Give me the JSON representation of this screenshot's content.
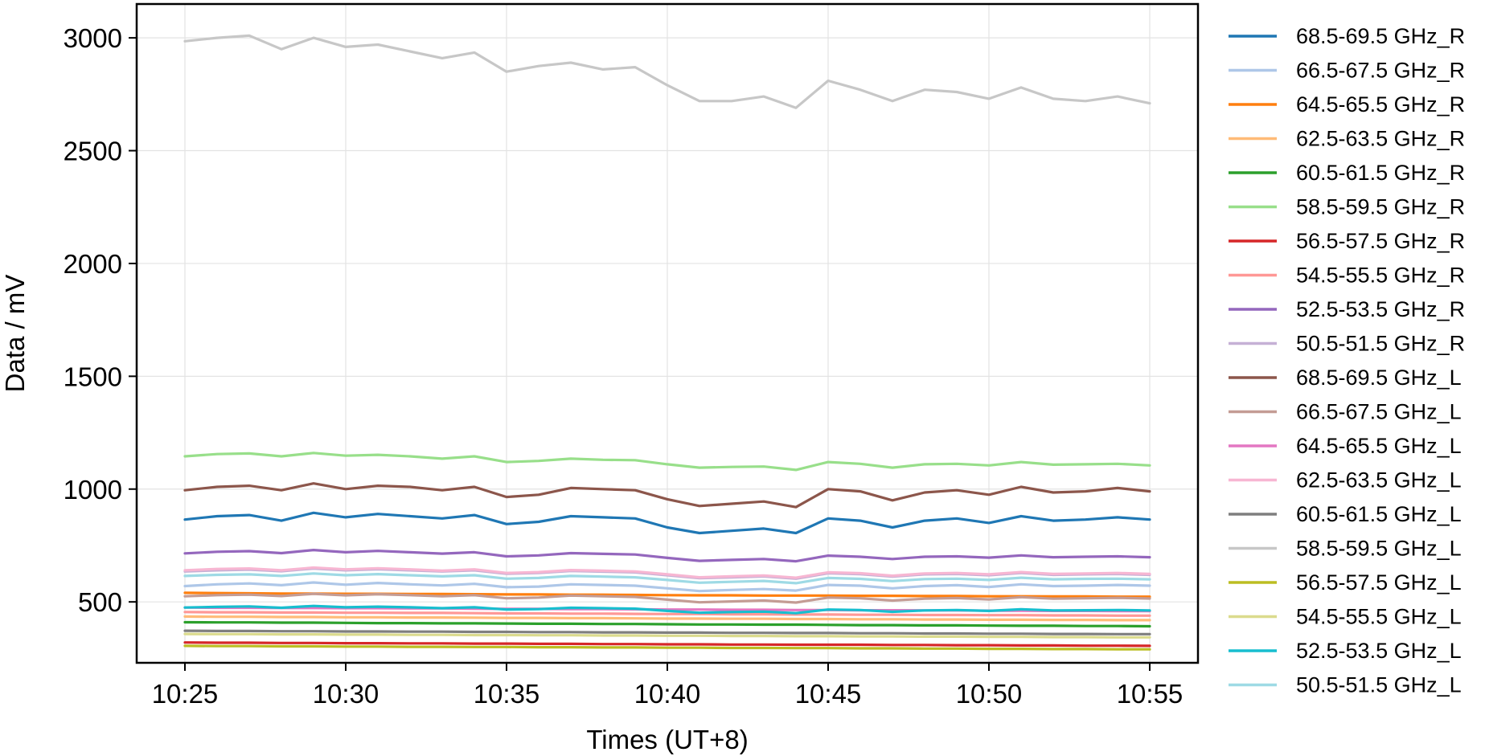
{
  "chart_data": {
    "type": "line",
    "title": "",
    "xlabel": "Times (UT+8)",
    "ylabel": "Data / mV",
    "x_ticks": [
      "10:25",
      "10:30",
      "10:35",
      "10:40",
      "10:45",
      "10:50",
      "10:55"
    ],
    "y_ticks": [
      500,
      1000,
      1500,
      2000,
      2500,
      3000
    ],
    "xlim": [
      "10:23:30",
      "10:56:30"
    ],
    "ylim": [
      230,
      3150
    ],
    "grid": true,
    "legend_position": "outside-right",
    "x": [
      "10:25",
      "10:26",
      "10:27",
      "10:28",
      "10:29",
      "10:30",
      "10:31",
      "10:32",
      "10:33",
      "10:34",
      "10:35",
      "10:36",
      "10:37",
      "10:38",
      "10:39",
      "10:40",
      "10:41",
      "10:42",
      "10:43",
      "10:44",
      "10:45",
      "10:46",
      "10:47",
      "10:48",
      "10:49",
      "10:50",
      "10:51",
      "10:52",
      "10:53",
      "10:54",
      "10:55"
    ],
    "series": [
      {
        "name": "68.5-69.5 GHz_R",
        "color": "#1f77b4",
        "values": [
          865,
          880,
          885,
          860,
          895,
          875,
          890,
          880,
          870,
          885,
          845,
          855,
          880,
          875,
          870,
          830,
          805,
          815,
          825,
          805,
          870,
          860,
          830,
          860,
          870,
          850,
          880,
          860,
          865,
          875,
          865
        ]
      },
      {
        "name": "66.5-67.5 GHz_R",
        "color": "#aec7e8",
        "values": [
          570,
          578,
          582,
          574,
          586,
          576,
          584,
          578,
          573,
          580,
          565,
          568,
          578,
          575,
          572,
          560,
          548,
          553,
          557,
          550,
          575,
          572,
          560,
          570,
          574,
          566,
          578,
          570,
          572,
          575,
          572
        ]
      },
      {
        "name": "64.5-65.5 GHz_R",
        "color": "#ff7f0e",
        "values": [
          540,
          539,
          538,
          537,
          537,
          536,
          536,
          535,
          535,
          534,
          533,
          533,
          532,
          532,
          531,
          530,
          529,
          529,
          528,
          528,
          528,
          527,
          527,
          526,
          526,
          525,
          525,
          524,
          524,
          523,
          523
        ]
      },
      {
        "name": "62.5-63.5 GHz_R",
        "color": "#ffbb78",
        "values": [
          435,
          434,
          434,
          433,
          433,
          432,
          432,
          431,
          431,
          430,
          429,
          429,
          428,
          428,
          427,
          426,
          426,
          425,
          425,
          424,
          424,
          423,
          423,
          422,
          422,
          421,
          421,
          420,
          420,
          419,
          419
        ]
      },
      {
        "name": "60.5-61.5 GHz_R",
        "color": "#2ca02c",
        "values": [
          410,
          409,
          409,
          408,
          408,
          407,
          406,
          406,
          405,
          405,
          404,
          403,
          403,
          402,
          402,
          401,
          400,
          400,
          399,
          399,
          398,
          397,
          397,
          396,
          396,
          395,
          394,
          394,
          393,
          393,
          392
        ]
      },
      {
        "name": "58.5-59.5 GHz_R",
        "color": "#98df8a",
        "values": [
          1145,
          1155,
          1158,
          1145,
          1160,
          1148,
          1152,
          1145,
          1135,
          1145,
          1120,
          1125,
          1135,
          1130,
          1128,
          1110,
          1095,
          1098,
          1100,
          1085,
          1120,
          1112,
          1095,
          1110,
          1112,
          1105,
          1120,
          1108,
          1110,
          1112,
          1105
        ]
      },
      {
        "name": "56.5-57.5 GHz_R",
        "color": "#d62728",
        "values": [
          320,
          319,
          319,
          318,
          318,
          317,
          317,
          316,
          316,
          315,
          315,
          314,
          314,
          313,
          313,
          312,
          312,
          311,
          311,
          310,
          310,
          310,
          309,
          309,
          308,
          308,
          307,
          307,
          306,
          306,
          305
        ]
      },
      {
        "name": "54.5-55.5 GHz_R",
        "color": "#ff9896",
        "values": [
          455,
          454,
          454,
          453,
          453,
          452,
          452,
          451,
          451,
          450,
          449,
          449,
          448,
          448,
          447,
          446,
          446,
          445,
          445,
          444,
          444,
          443,
          443,
          442,
          442,
          441,
          441,
          440,
          440,
          439,
          439
        ]
      },
      {
        "name": "52.5-53.5 GHz_R",
        "color": "#9467bd",
        "values": [
          715,
          722,
          725,
          716,
          730,
          720,
          726,
          720,
          714,
          720,
          702,
          706,
          716,
          713,
          710,
          695,
          682,
          686,
          690,
          680,
          705,
          700,
          690,
          700,
          702,
          696,
          706,
          698,
          700,
          702,
          698
        ]
      },
      {
        "name": "50.5-51.5 GHz_R",
        "color": "#c5b0d5",
        "values": [
          635,
          640,
          643,
          636,
          648,
          640,
          645,
          640,
          635,
          640,
          625,
          628,
          637,
          634,
          631,
          618,
          605,
          609,
          613,
          603,
          627,
          623,
          612,
          622,
          624,
          618,
          628,
          620,
          622,
          624,
          620
        ]
      },
      {
        "name": "68.5-69.5 GHz_L",
        "color": "#8c564b",
        "values": [
          995,
          1010,
          1015,
          995,
          1025,
          1000,
          1015,
          1010,
          995,
          1010,
          965,
          975,
          1005,
          1000,
          995,
          955,
          925,
          935,
          945,
          920,
          1000,
          990,
          950,
          985,
          995,
          975,
          1010,
          985,
          990,
          1005,
          990
        ]
      },
      {
        "name": "66.5-67.5 GHz_L",
        "color": "#c49c94",
        "values": [
          525,
          530,
          532,
          526,
          536,
          529,
          534,
          530,
          525,
          530,
          516,
          519,
          528,
          525,
          522,
          510,
          498,
          502,
          506,
          497,
          519,
          516,
          506,
          514,
          517,
          511,
          521,
          514,
          516,
          518,
          515
        ]
      },
      {
        "name": "64.5-65.5 GHz_L",
        "color": "#e377c2",
        "values": [
          475,
          474,
          474,
          473,
          473,
          472,
          472,
          471,
          471,
          470,
          469,
          469,
          468,
          468,
          467,
          466,
          466,
          465,
          465,
          464,
          464,
          463,
          463,
          462,
          462,
          461,
          461,
          460,
          460,
          459,
          459
        ]
      },
      {
        "name": "62.5-63.5 GHz_L",
        "color": "#f7b6d2",
        "values": [
          640,
          646,
          648,
          640,
          652,
          644,
          649,
          644,
          638,
          644,
          628,
          632,
          641,
          638,
          635,
          622,
          609,
          613,
          617,
          607,
          631,
          627,
          616,
          626,
          628,
          622,
          632,
          624,
          626,
          628,
          624
        ]
      },
      {
        "name": "60.5-61.5 GHz_L",
        "color": "#7f7f7f",
        "values": [
          372,
          371,
          371,
          370,
          370,
          369,
          369,
          368,
          368,
          367,
          367,
          366,
          366,
          365,
          365,
          364,
          364,
          363,
          363,
          362,
          362,
          361,
          361,
          360,
          360,
          359,
          359,
          358,
          358,
          357,
          357
        ]
      },
      {
        "name": "58.5-59.5 GHz_L",
        "color": "#c7c7c7",
        "values": [
          2985,
          3000,
          3010,
          2950,
          3000,
          2960,
          2970,
          2940,
          2910,
          2935,
          2850,
          2875,
          2890,
          2860,
          2870,
          2790,
          2720,
          2720,
          2740,
          2690,
          2810,
          2770,
          2720,
          2770,
          2760,
          2730,
          2780,
          2730,
          2720,
          2740,
          2710
        ]
      },
      {
        "name": "56.5-57.5 GHz_L",
        "color": "#bcbd22",
        "values": [
          305,
          304,
          304,
          303,
          303,
          302,
          302,
          301,
          301,
          300,
          300,
          299,
          299,
          298,
          298,
          297,
          297,
          296,
          296,
          295,
          295,
          294,
          294,
          293,
          293,
          292,
          292,
          291,
          291,
          290,
          290
        ]
      },
      {
        "name": "54.5-55.5 GHz_L",
        "color": "#dbdb8d",
        "values": [
          358,
          357,
          357,
          356,
          356,
          355,
          355,
          354,
          354,
          353,
          353,
          352,
          352,
          351,
          351,
          350,
          350,
          349,
          349,
          348,
          348,
          347,
          347,
          346,
          346,
          345,
          345,
          344,
          344,
          343,
          343
        ]
      },
      {
        "name": "52.5-53.5 GHz_L",
        "color": "#17becf",
        "values": [
          475,
          478,
          480,
          474,
          482,
          476,
          479,
          476,
          472,
          476,
          466,
          468,
          474,
          472,
          470,
          460,
          452,
          455,
          457,
          450,
          466,
          464,
          456,
          462,
          464,
          460,
          467,
          462,
          463,
          464,
          462
        ]
      },
      {
        "name": "50.5-51.5 GHz_L",
        "color": "#9edae5",
        "values": [
          615,
          620,
          622,
          615,
          626,
          618,
          623,
          618,
          613,
          618,
          603,
          606,
          615,
          612,
          609,
          597,
          585,
          589,
          593,
          583,
          606,
          602,
          592,
          601,
          603,
          597,
          607,
          600,
          602,
          603,
          600
        ]
      }
    ]
  }
}
